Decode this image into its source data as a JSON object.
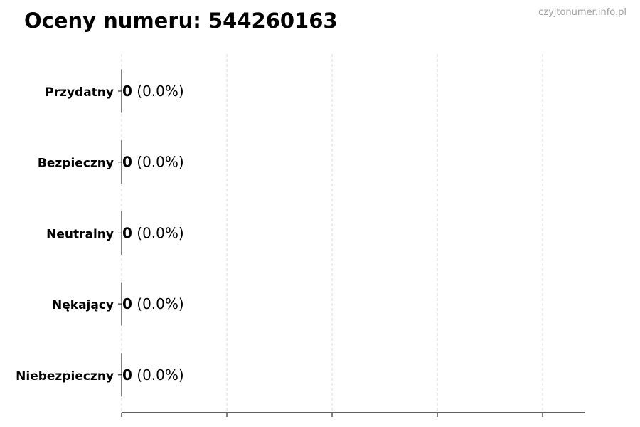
{
  "chart_data": {
    "type": "bar",
    "orientation": "horizontal",
    "title": "Oceny numeru: 544260163",
    "watermark": "czyjtonumer.info.pl",
    "categories": [
      "Przydatny",
      "Bezpieczny",
      "Neutralny",
      "Nękający",
      "Niebezpieczny"
    ],
    "values": [
      0,
      0,
      0,
      0,
      0
    ],
    "percent_labels": [
      "(0.0%)",
      "(0.0%)",
      "(0.0%)",
      "(0.0%)",
      "(0.0%)"
    ],
    "xlabel": "",
    "ylabel": "",
    "grid": "vertical dashed",
    "x_tick_labels": "none",
    "colors": {
      "edge": "#000000",
      "grid": "#d0d0d0",
      "watermark": "#a0a0a0"
    }
  }
}
